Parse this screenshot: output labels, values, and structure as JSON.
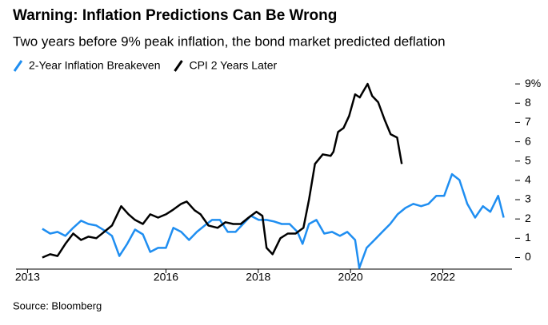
{
  "chart_data": {
    "type": "line",
    "title": "Warning: Inflation Predictions Can Be Wrong",
    "subtitle": "Two years before 9% peak inflation, the bond market predicted deflation",
    "source": "Source: Bloomberg",
    "xlim": [
      2012.75,
      2023.5
    ],
    "xticks": [
      2013,
      2016,
      2018,
      2020,
      2022
    ],
    "ylim": [
      -0.6,
      9.5
    ],
    "yticks": [
      0,
      1,
      2,
      3,
      4,
      5,
      6,
      7,
      8,
      {
        "value": 9,
        "label": "9%"
      }
    ],
    "grid": false,
    "legend": "top-left",
    "series": [
      {
        "name": "2-Year Inflation Breakeven",
        "color": "#1f8ef1",
        "x": [
          2013.32,
          2013.49,
          2013.65,
          2013.82,
          2013.99,
          2014.16,
          2014.32,
          2014.49,
          2014.66,
          2014.83,
          2014.99,
          2015.16,
          2015.33,
          2015.5,
          2015.66,
          2015.83,
          2016.0,
          2016.16,
          2016.33,
          2016.5,
          2016.67,
          2016.84,
          2017.0,
          2017.17,
          2017.34,
          2017.51,
          2017.67,
          2017.84,
          2018.01,
          2018.18,
          2018.34,
          2018.51,
          2018.68,
          2018.85,
          2018.96,
          2019.1,
          2019.26,
          2019.43,
          2019.6,
          2019.77,
          2019.93,
          2020.1,
          2020.19,
          2020.35,
          2020.52,
          2020.69,
          2020.86,
          2021.02,
          2021.19,
          2021.36,
          2021.53,
          2021.69,
          2021.86,
          2022.03,
          2022.2,
          2022.36,
          2022.53,
          2022.7,
          2022.87,
          2023.03,
          2023.2,
          2023.32
        ],
        "values": [
          1.49,
          1.24,
          1.33,
          1.12,
          1.54,
          1.91,
          1.74,
          1.66,
          1.41,
          1.12,
          0.08,
          0.71,
          1.45,
          1.2,
          0.29,
          0.5,
          0.5,
          1.54,
          1.33,
          0.91,
          1.33,
          1.66,
          1.95,
          1.95,
          1.33,
          1.33,
          1.74,
          2.16,
          1.95,
          1.95,
          1.87,
          1.74,
          1.74,
          1.33,
          0.71,
          1.74,
          1.95,
          1.24,
          1.33,
          1.12,
          1.33,
          0.91,
          -0.54,
          0.5,
          0.91,
          1.33,
          1.74,
          2.24,
          2.57,
          2.78,
          2.66,
          2.78,
          3.2,
          3.2,
          4.32,
          4.02,
          2.78,
          2.07,
          2.66,
          2.37,
          3.2,
          2.07
        ]
      },
      {
        "name": "CPI 2 Years Later",
        "color": "#000000",
        "x": [
          2013.32,
          2013.49,
          2013.65,
          2013.82,
          2013.99,
          2014.16,
          2014.32,
          2014.49,
          2014.66,
          2014.83,
          2015.03,
          2015.19,
          2015.33,
          2015.5,
          2015.66,
          2015.83,
          2016.0,
          2016.16,
          2016.33,
          2016.45,
          2016.62,
          2016.75,
          2016.92,
          2017.12,
          2017.29,
          2017.46,
          2017.62,
          2017.79,
          2017.96,
          2018.09,
          2018.18,
          2018.31,
          2018.48,
          2018.64,
          2018.81,
          2018.98,
          2019.1,
          2019.23,
          2019.4,
          2019.57,
          2019.63,
          2019.73,
          2019.85,
          2019.97,
          2020.1,
          2020.2,
          2020.27,
          2020.37,
          2020.47,
          2020.6,
          2020.74,
          2020.87,
          2021.01,
          2021.11
        ],
        "values": [
          0,
          0.17,
          0.08,
          0.71,
          1.24,
          0.91,
          1.08,
          1.0,
          1.33,
          1.66,
          2.66,
          2.24,
          1.95,
          1.74,
          2.24,
          2.07,
          2.24,
          2.49,
          2.78,
          2.9,
          2.45,
          2.24,
          1.66,
          1.54,
          1.83,
          1.74,
          1.74,
          2.07,
          2.37,
          2.16,
          0.5,
          0.17,
          1.0,
          1.24,
          1.24,
          1.54,
          2.99,
          4.85,
          5.35,
          5.27,
          5.48,
          6.51,
          6.72,
          7.34,
          8.46,
          8.3,
          8.59,
          9.0,
          8.38,
          8.05,
          7.14,
          6.39,
          6.22,
          4.85
        ]
      }
    ]
  }
}
